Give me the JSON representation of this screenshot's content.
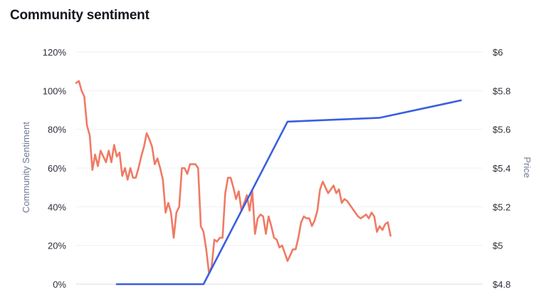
{
  "title": "Community sentiment",
  "colors": {
    "sentiment_line": "#f07a63",
    "price_line": "#3a5fe0",
    "grid": "#eef0f3",
    "axis_label": "#6e7a92",
    "tick_text": "#2b2f38"
  },
  "chart_data": {
    "type": "line",
    "title": "Community sentiment",
    "ylabel_left": "Community Sentiment",
    "ylabel_right": "Price",
    "left_axis": {
      "ticks": [
        "0%",
        "20%",
        "40%",
        "60%",
        "80%",
        "100%",
        "120%"
      ],
      "range": [
        0,
        120
      ]
    },
    "right_axis": {
      "ticks": [
        "$4.8",
        "$5",
        "$5.2",
        "$5.4",
        "$5.6",
        "$5.8",
        "$6"
      ],
      "range": [
        4.8,
        6.0
      ]
    },
    "grid": true,
    "x_range": [
      0,
      150
    ],
    "series": [
      {
        "axis": "left",
        "values": [
          [
            0,
            104
          ],
          [
            1,
            105
          ],
          [
            2,
            100
          ],
          [
            3,
            97
          ],
          [
            4,
            82
          ],
          [
            5,
            77
          ],
          [
            6,
            59
          ],
          [
            7,
            67
          ],
          [
            8,
            61
          ],
          [
            9,
            69
          ],
          [
            10,
            66
          ],
          [
            11,
            63
          ],
          [
            12,
            69
          ],
          [
            13,
            63
          ],
          [
            14,
            72
          ],
          [
            15,
            66
          ],
          [
            16,
            68
          ],
          [
            17,
            56
          ],
          [
            18,
            60
          ],
          [
            19,
            54
          ],
          [
            20,
            60
          ],
          [
            21,
            55
          ],
          [
            22,
            55
          ],
          [
            23,
            60
          ],
          [
            24,
            66
          ],
          [
            25,
            71
          ],
          [
            26,
            78
          ],
          [
            27,
            75
          ],
          [
            28,
            71
          ],
          [
            29,
            62
          ],
          [
            30,
            65
          ],
          [
            31,
            60
          ],
          [
            32,
            54
          ],
          [
            33,
            37
          ],
          [
            34,
            42
          ],
          [
            35,
            37
          ],
          [
            36,
            24
          ],
          [
            37,
            37
          ],
          [
            38,
            40
          ],
          [
            39,
            60
          ],
          [
            40,
            60
          ],
          [
            41,
            57
          ],
          [
            42,
            62
          ],
          [
            43,
            62
          ],
          [
            44,
            62
          ],
          [
            45,
            60
          ],
          [
            46,
            30
          ],
          [
            47,
            27
          ],
          [
            48,
            18
          ],
          [
            49,
            6
          ],
          [
            50,
            9
          ],
          [
            51,
            23
          ],
          [
            52,
            22
          ],
          [
            53,
            24
          ],
          [
            54,
            24
          ],
          [
            55,
            47
          ],
          [
            56,
            55
          ],
          [
            57,
            55
          ],
          [
            58,
            50
          ],
          [
            59,
            44
          ],
          [
            60,
            48
          ],
          [
            61,
            38
          ],
          [
            62,
            42
          ],
          [
            63,
            46
          ],
          [
            64,
            38
          ],
          [
            65,
            48
          ],
          [
            66,
            26
          ],
          [
            67,
            34
          ],
          [
            68,
            36
          ],
          [
            69,
            35
          ],
          [
            70,
            26
          ],
          [
            71,
            35
          ],
          [
            72,
            30
          ],
          [
            73,
            24
          ],
          [
            74,
            23
          ],
          [
            75,
            19
          ],
          [
            76,
            20
          ],
          [
            77,
            16
          ],
          [
            78,
            12
          ],
          [
            79,
            15
          ],
          [
            80,
            18
          ],
          [
            81,
            18
          ],
          [
            82,
            24
          ],
          [
            83,
            32
          ],
          [
            84,
            35
          ],
          [
            85,
            34
          ],
          [
            86,
            34
          ],
          [
            87,
            30
          ],
          [
            88,
            33
          ],
          [
            89,
            38
          ],
          [
            90,
            49
          ],
          [
            91,
            53
          ],
          [
            92,
            50
          ],
          [
            93,
            47
          ],
          [
            94,
            49
          ],
          [
            95,
            51
          ],
          [
            96,
            47
          ],
          [
            97,
            49
          ],
          [
            98,
            42
          ],
          [
            99,
            44
          ],
          [
            100,
            43
          ],
          [
            101,
            41
          ],
          [
            102,
            39
          ],
          [
            103,
            37
          ],
          [
            104,
            35
          ],
          [
            105,
            34
          ],
          [
            106,
            35
          ],
          [
            107,
            36
          ],
          [
            108,
            34
          ],
          [
            109,
            37
          ],
          [
            110,
            35
          ],
          [
            111,
            27
          ],
          [
            112,
            30
          ],
          [
            113,
            28
          ],
          [
            114,
            31
          ],
          [
            115,
            32
          ],
          [
            116,
            25
          ]
        ]
      },
      {
        "axis": "right",
        "values": [
          [
            15,
            4.8
          ],
          [
            47,
            4.8
          ],
          [
            78,
            5.64
          ],
          [
            112,
            5.66
          ],
          [
            142,
            5.75
          ]
        ]
      }
    ]
  }
}
